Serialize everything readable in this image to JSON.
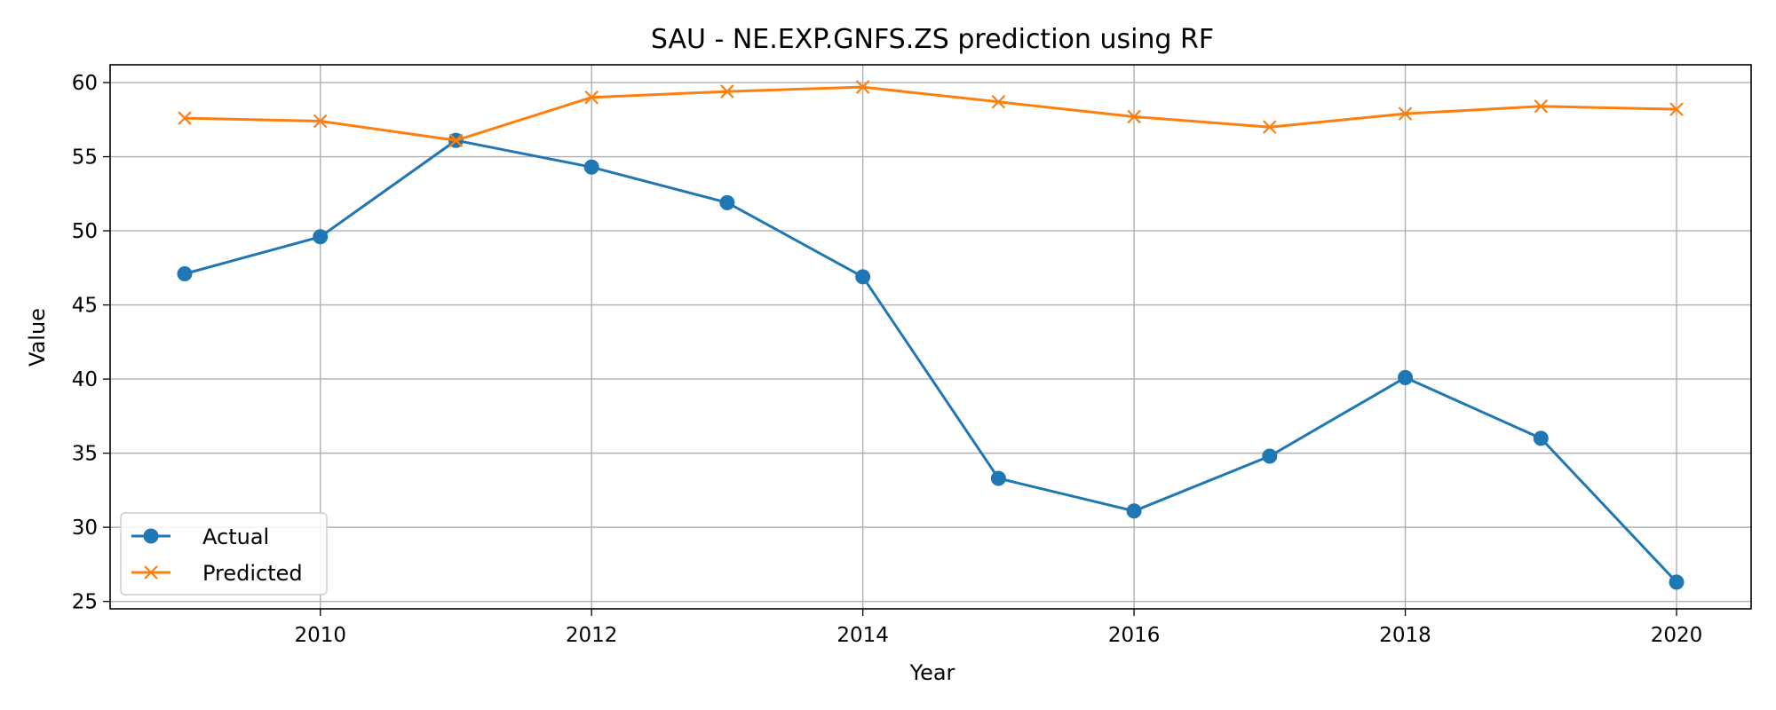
{
  "chart_data": {
    "type": "line",
    "title": "SAU - NE.EXP.GNFS.ZS prediction using RF",
    "xlabel": "Year",
    "ylabel": "Value",
    "x": [
      2009,
      2010,
      2011,
      2012,
      2013,
      2014,
      2015,
      2016,
      2017,
      2018,
      2019,
      2020
    ],
    "xlim": [
      2008.45,
      2020.55
    ],
    "ylim": [
      24.5,
      61.2
    ],
    "xticks": [
      2010,
      2012,
      2014,
      2016,
      2018,
      2020
    ],
    "yticks": [
      25,
      30,
      35,
      40,
      45,
      50,
      55,
      60
    ],
    "grid": true,
    "legend_position": "lower-left",
    "series": [
      {
        "name": "Actual",
        "color": "#1f77b4",
        "marker": "circle",
        "values": [
          47.1,
          49.6,
          56.1,
          54.3,
          51.9,
          46.9,
          33.3,
          31.1,
          34.8,
          40.1,
          36.0,
          26.3
        ]
      },
      {
        "name": "Predicted",
        "color": "#ff7f0e",
        "marker": "x",
        "values": [
          57.6,
          57.4,
          56.1,
          59.0,
          59.4,
          59.7,
          58.7,
          57.7,
          57.0,
          57.9,
          58.4,
          58.2
        ]
      }
    ]
  }
}
